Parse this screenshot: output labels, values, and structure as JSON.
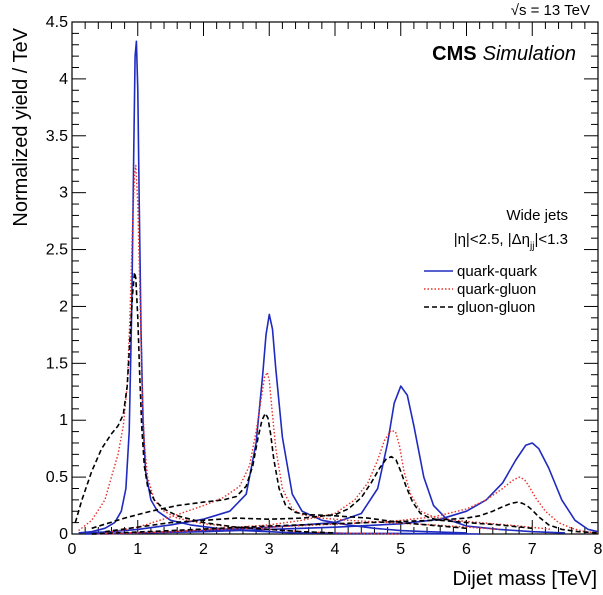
{
  "chart_data": {
    "type": "line",
    "energy_label": "√s = 13 TeV",
    "cms_label": "CMS",
    "sim_label": "Simulation",
    "xlabel": "Dijet mass [TeV]",
    "ylabel": "Normalized yield / TeV",
    "xlim": [
      0,
      8
    ],
    "ylim": [
      0,
      4.5
    ],
    "xticks": [
      0,
      1,
      2,
      3,
      4,
      5,
      6,
      7,
      8
    ],
    "yticks": [
      0,
      0.5,
      1,
      1.5,
      2,
      2.5,
      3,
      3.5,
      4,
      4.5
    ],
    "annotations": {
      "line1": "Wide jets",
      "line2": "|η|<2.5, |Δη",
      "line2_sub": "jj",
      "line2_end": "|<1.3"
    },
    "legend_position": "right",
    "grid": false,
    "series": [
      {
        "name": "quark-quark",
        "color": "#1f2bbf",
        "dash": "solid",
        "curves": [
          {
            "x": [
              0.1,
              0.3,
              0.5,
              0.65,
              0.75,
              0.82,
              0.87,
              0.91,
              0.94,
              0.96,
              0.98,
              1.0,
              1.02,
              1.05,
              1.08,
              1.12,
              1.2,
              1.3,
              1.5,
              1.8,
              2.2,
              2.6,
              3.0,
              3.4,
              3.8,
              4.2,
              4.6,
              5.0,
              5.4,
              5.8,
              6.2
            ],
            "y": [
              0.01,
              0.02,
              0.05,
              0.1,
              0.2,
              0.4,
              0.9,
              2.0,
              3.4,
              4.2,
              4.33,
              3.9,
              3.0,
              1.8,
              1.0,
              0.55,
              0.3,
              0.2,
              0.12,
              0.08,
              0.05,
              0.03,
              0.02,
              0.01,
              0.01,
              0.005,
              0.005,
              0.005,
              0.003,
              0.002,
              0.0
            ]
          },
          {
            "x": [
              0.2,
              0.6,
              1.0,
              1.5,
              2.0,
              2.4,
              2.65,
              2.8,
              2.9,
              2.95,
              3.0,
              3.05,
              3.1,
              3.2,
              3.35,
              3.5,
              3.8,
              4.2,
              4.6,
              5.0,
              5.4,
              6.0
            ],
            "y": [
              0.01,
              0.02,
              0.04,
              0.08,
              0.13,
              0.2,
              0.35,
              0.8,
              1.4,
              1.75,
              1.93,
              1.8,
              1.45,
              0.85,
              0.35,
              0.2,
              0.12,
              0.08,
              0.05,
              0.03,
              0.02,
              0.01
            ]
          },
          {
            "x": [
              0.5,
              1.0,
              2.0,
              3.0,
              3.5,
              4.0,
              4.4,
              4.65,
              4.8,
              4.9,
              5.0,
              5.1,
              5.2,
              5.35,
              5.5,
              5.7,
              6.0,
              6.5,
              7.0,
              7.5
            ],
            "y": [
              0.0,
              0.01,
              0.03,
              0.06,
              0.08,
              0.1,
              0.18,
              0.4,
              0.8,
              1.15,
              1.3,
              1.22,
              0.95,
              0.5,
              0.25,
              0.13,
              0.07,
              0.04,
              0.02,
              0.01
            ]
          },
          {
            "x": [
              0.2,
              1.0,
              2.0,
              3.0,
              4.0,
              5.0,
              5.6,
              6.0,
              6.3,
              6.55,
              6.75,
              6.9,
              7.0,
              7.1,
              7.25,
              7.45,
              7.65,
              7.85,
              8.0
            ],
            "y": [
              0.0,
              0.01,
              0.02,
              0.04,
              0.06,
              0.09,
              0.13,
              0.2,
              0.3,
              0.45,
              0.65,
              0.78,
              0.8,
              0.75,
              0.58,
              0.3,
              0.12,
              0.04,
              0.02
            ]
          }
        ]
      },
      {
        "name": "quark-gluon",
        "color": "#e8302a",
        "dash": "dotted",
        "curves": [
          {
            "x": [
              0.1,
              0.3,
              0.5,
              0.6,
              0.7,
              0.78,
              0.84,
              0.88,
              0.92,
              0.95,
              0.97,
              1.0,
              1.03,
              1.06,
              1.1,
              1.15,
              1.25,
              1.4,
              1.6,
              2.0,
              2.5,
              3.0,
              3.5,
              4.0,
              5.0
            ],
            "y": [
              0.03,
              0.12,
              0.3,
              0.5,
              0.7,
              0.95,
              1.3,
              1.9,
              2.7,
              3.15,
              3.24,
              2.9,
              2.2,
              1.4,
              0.8,
              0.5,
              0.3,
              0.2,
              0.14,
              0.09,
              0.06,
              0.04,
              0.02,
              0.01,
              0.0
            ]
          },
          {
            "x": [
              0.5,
              1.0,
              1.5,
              2.0,
              2.3,
              2.55,
              2.7,
              2.8,
              2.88,
              2.93,
              2.97,
              3.0,
              3.04,
              3.1,
              3.2,
              3.35,
              3.5,
              3.8,
              4.2,
              4.8,
              5.5,
              6.5
            ],
            "y": [
              0.01,
              0.06,
              0.15,
              0.25,
              0.32,
              0.42,
              0.6,
              0.9,
              1.2,
              1.38,
              1.42,
              1.35,
              1.1,
              0.75,
              0.4,
              0.22,
              0.17,
              0.14,
              0.12,
              0.1,
              0.08,
              0.04
            ]
          },
          {
            "x": [
              0.5,
              1.5,
              2.5,
              3.0,
              3.5,
              4.0,
              4.3,
              4.5,
              4.65,
              4.75,
              4.85,
              4.92,
              4.98,
              5.05,
              5.15,
              5.3,
              5.5,
              5.8,
              6.2,
              6.8,
              7.3
            ],
            "y": [
              0.0,
              0.02,
              0.06,
              0.08,
              0.12,
              0.18,
              0.3,
              0.45,
              0.65,
              0.82,
              0.91,
              0.9,
              0.78,
              0.55,
              0.35,
              0.2,
              0.15,
              0.12,
              0.1,
              0.07,
              0.04
            ]
          },
          {
            "x": [
              0.3,
              1.5,
              3.0,
              4.5,
              5.0,
              5.5,
              6.0,
              6.3,
              6.55,
              6.7,
              6.8,
              6.88,
              6.95,
              7.05,
              7.2,
              7.4,
              7.6,
              7.8,
              8.0
            ],
            "y": [
              0.0,
              0.02,
              0.06,
              0.1,
              0.12,
              0.15,
              0.22,
              0.3,
              0.4,
              0.47,
              0.5,
              0.48,
              0.42,
              0.32,
              0.2,
              0.1,
              0.05,
              0.02,
              0.01
            ]
          }
        ]
      },
      {
        "name": "gluon-gluon",
        "color": "#000000",
        "dash": "dashed",
        "curves": [
          {
            "x": [
              0.05,
              0.15,
              0.3,
              0.45,
              0.6,
              0.7,
              0.78,
              0.84,
              0.88,
              0.92,
              0.95,
              0.97,
              1.0,
              1.03,
              1.06,
              1.1,
              1.15,
              1.25,
              1.4,
              1.6,
              2.0,
              2.5,
              3.0,
              3.5,
              4.0
            ],
            "y": [
              0.1,
              0.3,
              0.55,
              0.75,
              0.88,
              0.95,
              1.05,
              1.3,
              1.7,
              2.1,
              2.3,
              2.25,
              1.9,
              1.4,
              0.95,
              0.6,
              0.42,
              0.3,
              0.22,
              0.16,
              0.1,
              0.06,
              0.04,
              0.02,
              0.01
            ]
          },
          {
            "x": [
              0.3,
              0.8,
              1.2,
              1.6,
              2.0,
              2.3,
              2.5,
              2.65,
              2.75,
              2.83,
              2.89,
              2.94,
              2.98,
              3.02,
              3.07,
              3.15,
              3.25,
              3.4,
              3.6,
              4.0,
              4.5,
              5.0,
              6.0
            ],
            "y": [
              0.05,
              0.14,
              0.2,
              0.25,
              0.28,
              0.3,
              0.33,
              0.42,
              0.6,
              0.85,
              1.0,
              1.06,
              1.02,
              0.88,
              0.65,
              0.4,
              0.25,
              0.19,
              0.17,
              0.16,
              0.14,
              0.1,
              0.05
            ]
          },
          {
            "x": [
              0.5,
              1.5,
              2.5,
              3.0,
              3.5,
              4.0,
              4.2,
              4.4,
              4.55,
              4.68,
              4.78,
              4.86,
              4.93,
              5.0,
              5.08,
              5.18,
              5.3,
              5.45,
              5.6,
              6.0,
              6.5,
              7.0
            ],
            "y": [
              0.02,
              0.1,
              0.14,
              0.13,
              0.14,
              0.17,
              0.22,
              0.32,
              0.45,
              0.58,
              0.66,
              0.68,
              0.65,
              0.55,
              0.42,
              0.28,
              0.18,
              0.14,
              0.12,
              0.1,
              0.08,
              0.05
            ]
          },
          {
            "x": [
              0.3,
              1.5,
              3.0,
              4.5,
              5.0,
              5.5,
              6.0,
              6.2,
              6.4,
              6.55,
              6.68,
              6.78,
              6.85,
              6.92,
              7.0,
              7.1,
              7.25,
              7.45,
              7.7,
              8.0
            ],
            "y": [
              0.0,
              0.03,
              0.07,
              0.1,
              0.11,
              0.12,
              0.14,
              0.16,
              0.2,
              0.24,
              0.27,
              0.28,
              0.27,
              0.25,
              0.21,
              0.15,
              0.08,
              0.04,
              0.02,
              0.01
            ]
          }
        ]
      }
    ]
  }
}
